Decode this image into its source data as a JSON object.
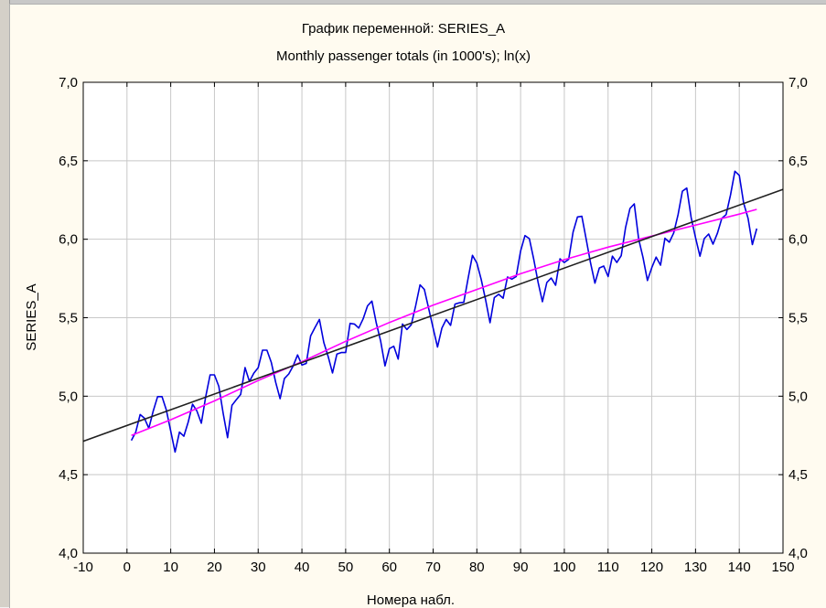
{
  "chart_data": {
    "type": "line",
    "title": "График переменной: SERIES_A",
    "subtitle": "Monthly passenger totals (in 1000's); ln(x)",
    "xlabel": "Номера набл.",
    "ylabel": "SERIES_A",
    "xlim": [
      -10,
      150
    ],
    "ylim": [
      4.0,
      7.0
    ],
    "x_ticks": [
      "-10",
      "0",
      "10",
      "20",
      "30",
      "40",
      "50",
      "60",
      "70",
      "80",
      "90",
      "100",
      "110",
      "120",
      "130",
      "140",
      "150"
    ],
    "y_ticks": [
      "4,0",
      "4,5",
      "5,0",
      "5,5",
      "6,0",
      "6,5",
      "7,0"
    ],
    "x_tick_values": [
      -10,
      0,
      10,
      20,
      30,
      40,
      50,
      60,
      70,
      80,
      90,
      100,
      110,
      120,
      130,
      140,
      150
    ],
    "y_tick_values": [
      4.0,
      4.5,
      5.0,
      5.5,
      6.0,
      6.5,
      7.0
    ],
    "grid": true,
    "series": [
      {
        "color": "#0000dd",
        "x": [
          1,
          2,
          3,
          4,
          5,
          6,
          7,
          8,
          9,
          10,
          11,
          12,
          13,
          14,
          15,
          16,
          17,
          18,
          19,
          20,
          21,
          22,
          23,
          24,
          25,
          26,
          27,
          28,
          29,
          30,
          31,
          32,
          33,
          34,
          35,
          36,
          37,
          38,
          39,
          40,
          41,
          42,
          43,
          44,
          45,
          46,
          47,
          48,
          49,
          50,
          51,
          52,
          53,
          54,
          55,
          56,
          57,
          58,
          59,
          60,
          61,
          62,
          63,
          64,
          65,
          66,
          67,
          68,
          69,
          70,
          71,
          72,
          73,
          74,
          75,
          76,
          77,
          78,
          79,
          80,
          81,
          82,
          83,
          84,
          85,
          86,
          87,
          88,
          89,
          90,
          91,
          92,
          93,
          94,
          95,
          96,
          97,
          98,
          99,
          100,
          101,
          102,
          103,
          104,
          105,
          106,
          107,
          108,
          109,
          110,
          111,
          112,
          113,
          114,
          115,
          116,
          117,
          118,
          119,
          120,
          121,
          122,
          123,
          124,
          125,
          126,
          127,
          128,
          129,
          130,
          131,
          132,
          133,
          134,
          135,
          136,
          137,
          138,
          139,
          140,
          141,
          142,
          143,
          144
        ],
        "values": [
          4.718,
          4.771,
          4.883,
          4.86,
          4.796,
          4.905,
          4.997,
          4.997,
          4.913,
          4.779,
          4.644,
          4.771,
          4.745,
          4.836,
          4.949,
          4.905,
          4.828,
          4.997,
          5.136,
          5.136,
          5.063,
          4.89,
          4.736,
          4.942,
          4.977,
          5.011,
          5.182,
          5.094,
          5.147,
          5.182,
          5.293,
          5.293,
          5.215,
          5.088,
          4.984,
          5.112,
          5.142,
          5.193,
          5.263,
          5.198,
          5.209,
          5.384,
          5.438,
          5.489,
          5.342,
          5.252,
          5.148,
          5.268,
          5.278,
          5.278,
          5.464,
          5.46,
          5.434,
          5.493,
          5.576,
          5.606,
          5.468,
          5.352,
          5.193,
          5.303,
          5.318,
          5.236,
          5.46,
          5.425,
          5.455,
          5.576,
          5.71,
          5.68,
          5.557,
          5.434,
          5.313,
          5.434,
          5.489,
          5.451,
          5.587,
          5.595,
          5.598,
          5.753,
          5.897,
          5.849,
          5.743,
          5.613,
          5.468,
          5.628,
          5.649,
          5.624,
          5.759,
          5.746,
          5.762,
          5.924,
          6.023,
          6.004,
          5.872,
          5.724,
          5.602,
          5.724,
          5.753,
          5.707,
          5.875,
          5.852,
          5.872,
          6.045,
          6.142,
          6.146,
          6.001,
          5.849,
          5.72,
          5.817,
          5.829,
          5.762,
          5.892,
          5.852,
          5.895,
          6.075,
          6.196,
          6.225,
          6.001,
          5.883,
          5.737,
          5.82,
          5.886,
          5.835,
          6.006,
          5.981,
          6.04,
          6.157,
          6.306,
          6.326,
          6.138,
          6.009,
          5.892,
          6.004,
          6.033,
          5.969,
          6.038,
          6.133,
          6.157,
          6.282,
          6.433,
          6.407,
          6.23,
          6.133,
          5.966,
          6.068
        ]
      },
      {
        "color": "#ff00ff",
        "x": [
          1,
          10,
          20,
          30,
          40,
          50,
          60,
          70,
          80,
          90,
          100,
          110,
          120,
          130,
          140,
          144
        ],
        "values": [
          4.75,
          4.85,
          4.97,
          5.1,
          5.22,
          5.35,
          5.47,
          5.58,
          5.68,
          5.78,
          5.87,
          5.95,
          6.02,
          6.09,
          6.16,
          6.19
        ]
      },
      {
        "color": "#202020",
        "x": [
          -10,
          150
        ],
        "values": [
          4.713,
          6.318
        ]
      }
    ]
  }
}
